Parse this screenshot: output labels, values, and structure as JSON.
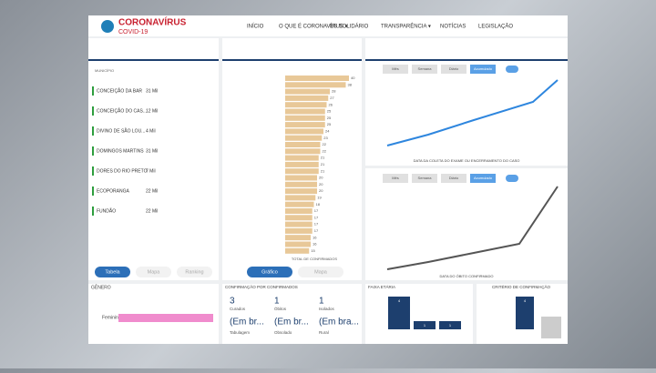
{
  "header": {
    "brand": "CORONAVÍRUS",
    "sub": "COVID-19",
    "nav": [
      "INÍCIO",
      "O QUE É CORONAVÍRUS ▾",
      "ES SOLIDÁRIO",
      "TRANSPARÊNCIA ▾",
      "NOTÍCIAS",
      "LEGISLAÇÃO"
    ]
  },
  "table": {
    "title": "MUNICÍPIO",
    "rows": [
      [
        "CONCEIÇÃO DA BAR",
        "31 Mil"
      ],
      [
        "CONCEIÇÃO DO CAS...",
        "12 Mil"
      ],
      [
        "DIVINO DE SÃO LOU...",
        "4 Mil"
      ],
      [
        "DOMINGOS MARTINS",
        "31 Mil"
      ],
      [
        "DORES DO RIO PRETO",
        "7 Mil"
      ],
      [
        "ECOPORANGA",
        "22 Mil"
      ],
      [
        "FUNDÃO",
        "22 Mil"
      ]
    ],
    "tabs": [
      "Tabela",
      "Mapa",
      "Ranking"
    ]
  },
  "ranking": {
    "type": "bar",
    "color": "#e8c898",
    "values": [
      40,
      38,
      28,
      27,
      26,
      25,
      25,
      25,
      24,
      23,
      22,
      22,
      21,
      21,
      21,
      20,
      20,
      20,
      19,
      18,
      17,
      17,
      17,
      17,
      16,
      16,
      15
    ],
    "xlabel": "TOTAL DE CONFIRMADOS",
    "tabs": [
      "Gráfico",
      "Mapa"
    ]
  },
  "lines": [
    {
      "buttons": [
        "Mês",
        "Semana",
        "Diário",
        "Acumulado"
      ],
      "xlabel": "DATA DA COLETA DO EXAME OU ENCERRAMENTO DO CASO"
    },
    {
      "buttons": [
        "Mês",
        "Semana",
        "Diário",
        "Acumulado"
      ],
      "xlabel": "DATA DO ÓBITO CONFIRMADO"
    }
  ],
  "gender": {
    "title": "GÊNERO",
    "label": "Feminino"
  },
  "kpis": {
    "title": "CONFIRMAÇÃO POR CONFIRMADOS",
    "items": [
      [
        "3",
        "Curados",
        "(Em br...",
        "Tabulagem"
      ],
      [
        "1",
        "Óbitos",
        "(Em br...",
        "Obsolado"
      ],
      [
        "1",
        "Isolados",
        "(Em bra...",
        "Rural"
      ]
    ]
  },
  "age": {
    "title": "FAIXA ETÁRIA",
    "values": [
      4,
      1,
      1
    ]
  },
  "criteria": {
    "title": "CRITÉRIO DE CONFIRMAÇÃO",
    "values": [
      4
    ]
  }
}
